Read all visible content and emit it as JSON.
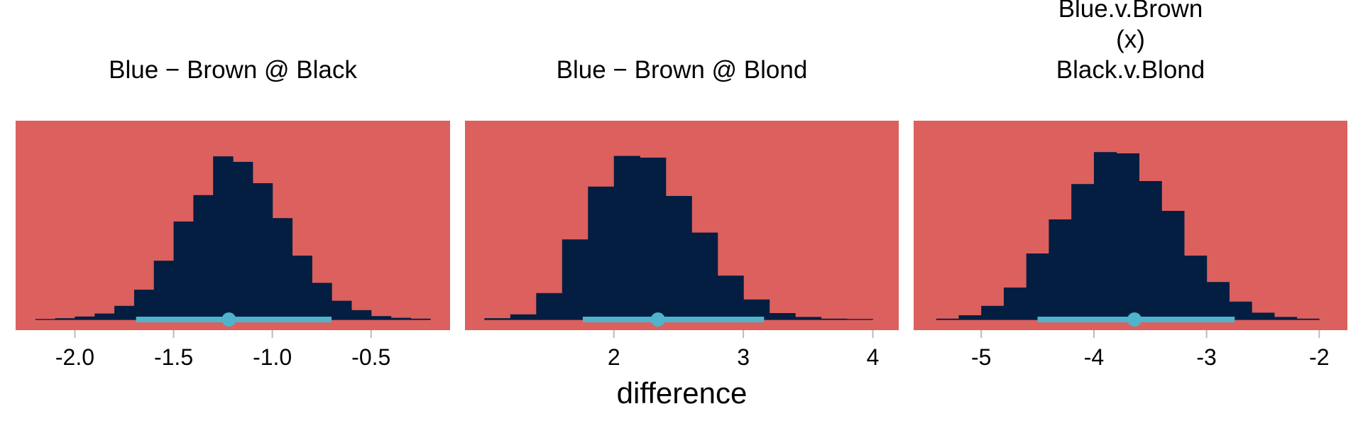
{
  "colors": {
    "panel_bg": "#dc605e",
    "bars": "#031e41",
    "interval": "#4fb3cc",
    "tick": "#bbbbbb"
  },
  "chart_data": [
    {
      "type": "bar",
      "title": [
        "Blue − Brown @ Black"
      ],
      "xlabel": "",
      "xlim": [
        -2.3,
        -0.1
      ],
      "xticks": [
        -2.0,
        -1.5,
        -1.0,
        -0.5
      ],
      "xtick_labels": [
        "-2.0",
        "-1.5",
        "-1.0",
        "-0.5"
      ],
      "bin_edges": [
        -2.2,
        -2.1,
        -2.0,
        -1.9,
        -1.8,
        -1.7,
        -1.6,
        -1.5,
        -1.4,
        -1.3,
        -1.2,
        -1.1,
        -1.0,
        -0.9,
        -0.8,
        -0.7,
        -0.6,
        -0.5,
        -0.4,
        -0.3,
        -0.2
      ],
      "values": [
        1,
        3,
        7,
        14,
        32,
        70,
        138,
        230,
        292,
        383,
        370,
        320,
        238,
        150,
        86,
        44,
        22,
        8,
        4,
        2
      ],
      "ymax": 400,
      "point_estimate": -1.22,
      "interval": [
        -1.69,
        -0.7
      ]
    },
    {
      "type": "bar",
      "title": [
        "Blue − Brown @ Blond"
      ],
      "xlabel": "difference",
      "xlim": [
        0.85,
        4.2
      ],
      "xticks": [
        2,
        3,
        4
      ],
      "xtick_labels": [
        "2",
        "3",
        "4"
      ],
      "bin_edges": [
        1.0,
        1.2,
        1.4,
        1.6,
        1.8,
        2.0,
        2.2,
        2.4,
        2.6,
        2.8,
        3.0,
        3.2,
        3.4,
        3.6,
        3.8,
        4.0
      ],
      "values": [
        3,
        12,
        62,
        188,
        312,
        384,
        380,
        290,
        204,
        103,
        47,
        15,
        6,
        2,
        1
      ],
      "ymax": 400,
      "point_estimate": 2.34,
      "interval": [
        1.76,
        3.16
      ]
    },
    {
      "type": "bar",
      "title": [
        "Blue.v.Brown",
        "(x)",
        "Black.v.Blond"
      ],
      "xlabel": "",
      "xlim": [
        -5.6,
        -1.75
      ],
      "xticks": [
        -5,
        -4,
        -3,
        -2
      ],
      "xtick_labels": [
        "-5",
        "-4",
        "-3",
        "-2"
      ],
      "bin_edges": [
        -5.4,
        -5.2,
        -5.0,
        -4.8,
        -4.6,
        -4.4,
        -4.2,
        -4.0,
        -3.8,
        -3.6,
        -3.4,
        -3.2,
        -3.0,
        -2.8,
        -2.6,
        -2.4,
        -2.2,
        -2.0
      ],
      "values": [
        2,
        10,
        32,
        75,
        155,
        235,
        318,
        393,
        390,
        325,
        255,
        150,
        88,
        42,
        16,
        6,
        2
      ],
      "ymax": 400,
      "point_estimate": -3.64,
      "interval": [
        -4.5,
        -2.75
      ]
    }
  ]
}
